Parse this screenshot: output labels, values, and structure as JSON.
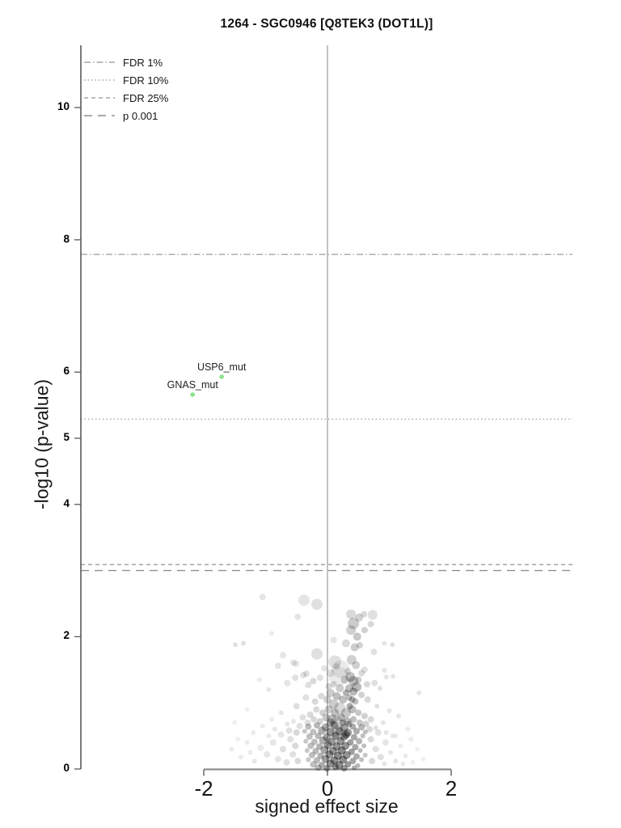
{
  "header": {
    "title": "1264 - SGC0946 [Q8TEK3 (DOT1L)]"
  },
  "chart_data": {
    "type": "scatter",
    "title": "1264 - SGC0946 [Q8TEK3 (DOT1L)]",
    "xlabel": "signed effect size",
    "ylabel": "-log10 (p-value)",
    "xlim": [
      -4,
      4
    ],
    "ylim": [
      0,
      10.95
    ],
    "x_ticks": [
      -2,
      0,
      2
    ],
    "y_ticks": [
      0,
      2,
      4,
      5,
      6,
      8,
      10
    ],
    "grid": false,
    "legend_position": "top-left",
    "legend": [
      {
        "label": "FDR 1%",
        "style": "dashdot"
      },
      {
        "label": "FDR 10%",
        "style": "dotted"
      },
      {
        "label": "FDR 25%",
        "style": "dashed"
      },
      {
        "label": "p 0.001",
        "style": "longdash"
      }
    ],
    "reference_lines": [
      {
        "label": "FDR 1%",
        "style": "dashdot",
        "y": 7.78,
        "color": "#a6a6a6"
      },
      {
        "label": "FDR 10%",
        "style": "dotted",
        "y": 5.29,
        "color": "#a6a6a6"
      },
      {
        "label": "FDR 25%",
        "style": "dashed",
        "y": 3.09,
        "color": "#a6a6a6"
      },
      {
        "label": "p 0.001",
        "style": "longdash",
        "y": 3.0,
        "color": "#8f8f8f"
      }
    ],
    "vline": {
      "x": 0,
      "color": "#c2c2c2"
    },
    "highlight_color": "#8be28b",
    "point_color": "#000000",
    "labeled_points": [
      {
        "label": "USP6_mut",
        "x": -1.71,
        "y": 5.93
      },
      {
        "label": "GNAS_mut",
        "x": -2.18,
        "y": 5.66
      }
    ],
    "background_points_format": [
      "x",
      "y",
      "radius_px",
      "alpha"
    ],
    "background_points": [
      [
        -1.05,
        2.6,
        4,
        0.1
      ],
      [
        -0.38,
        2.55,
        7,
        0.1
      ],
      [
        -0.17,
        2.49,
        7,
        0.12
      ],
      [
        -0.48,
        2.3,
        4,
        0.1
      ],
      [
        0.38,
        2.34,
        6,
        0.15
      ],
      [
        0.42,
        2.2,
        7,
        0.2
      ],
      [
        0.51,
        2.29,
        5,
        0.18
      ],
      [
        0.59,
        2.34,
        4,
        0.15
      ],
      [
        0.73,
        2.33,
        6,
        0.12
      ],
      [
        0.38,
        2.1,
        6,
        0.18
      ],
      [
        0.48,
        2.0,
        5,
        0.22
      ],
      [
        0.7,
        2.19,
        4,
        0.15
      ],
      [
        0.6,
        2.1,
        4,
        0.18
      ],
      [
        -1.49,
        1.88,
        3,
        0.12
      ],
      [
        -1.36,
        1.9,
        3,
        0.12
      ],
      [
        1.05,
        1.88,
        3,
        0.12
      ],
      [
        0.75,
        1.77,
        4,
        0.12
      ],
      [
        -0.17,
        1.74,
        7,
        0.12
      ],
      [
        -0.72,
        1.72,
        4,
        0.1
      ],
      [
        0.44,
        1.84,
        5,
        0.2
      ],
      [
        0.52,
        1.87,
        4,
        0.18
      ],
      [
        0.92,
        1.9,
        3,
        0.1
      ],
      [
        -0.9,
        2.05,
        3,
        0.08
      ],
      [
        0.1,
        1.95,
        4,
        0.1
      ],
      [
        0.3,
        1.9,
        5,
        0.15
      ],
      [
        0.21,
        1.51,
        11,
        0.08
      ],
      [
        0.12,
        1.62,
        8,
        0.12
      ],
      [
        0.39,
        1.65,
        6,
        0.18
      ],
      [
        0.46,
        1.57,
        5,
        0.18
      ],
      [
        0.18,
        1.4,
        12,
        0.08
      ],
      [
        0.37,
        1.39,
        6,
        0.25
      ],
      [
        0.42,
        1.33,
        6,
        0.25
      ],
      [
        0.47,
        1.24,
        6,
        0.28
      ],
      [
        0.35,
        1.22,
        5,
        0.25
      ],
      [
        0.42,
        1.17,
        5,
        0.28
      ],
      [
        -0.55,
        1.61,
        4,
        0.1
      ],
      [
        -0.51,
        1.59,
        4,
        0.1
      ],
      [
        -0.34,
        1.44,
        4,
        0.12
      ],
      [
        -0.8,
        1.56,
        4,
        0.1
      ],
      [
        -0.52,
        1.38,
        4,
        0.12
      ],
      [
        -0.39,
        1.42,
        4,
        0.12
      ],
      [
        -0.23,
        1.33,
        4,
        0.15
      ],
      [
        -0.31,
        1.27,
        4,
        0.12
      ],
      [
        0.02,
        1.25,
        4,
        0.15
      ],
      [
        0.1,
        1.28,
        4,
        0.15
      ],
      [
        0.92,
        1.49,
        3,
        0.1
      ],
      [
        1.06,
        1.4,
        3,
        0.1
      ],
      [
        0.76,
        1.3,
        4,
        0.12
      ],
      [
        0.64,
        1.28,
        4,
        0.15
      ],
      [
        0.95,
        1.39,
        3,
        0.1
      ],
      [
        1.48,
        1.15,
        3,
        0.1
      ],
      [
        -1.1,
        1.35,
        3,
        0.08
      ],
      [
        -0.95,
        1.2,
        3,
        0.1
      ],
      [
        0.55,
        1.45,
        4,
        0.15
      ],
      [
        0.28,
        1.35,
        5,
        0.18
      ],
      [
        0.05,
        1.45,
        5,
        0.1
      ],
      [
        -0.12,
        1.38,
        4,
        0.12
      ],
      [
        0.2,
        1.22,
        5,
        0.2
      ],
      [
        0.5,
        1.35,
        4,
        0.2
      ],
      [
        0.6,
        1.5,
        4,
        0.12
      ],
      [
        -0.65,
        1.3,
        4,
        0.1
      ],
      [
        0.85,
        1.22,
        3,
        0.12
      ],
      [
        0.15,
        1.55,
        4,
        0.12
      ],
      [
        -0.05,
        1.52,
        4,
        0.1
      ],
      [
        0.33,
        1.48,
        4,
        0.15
      ],
      [
        0.05,
        1.15,
        5,
        0.2
      ],
      [
        0.15,
        1.1,
        5,
        0.25
      ],
      [
        0.25,
        1.05,
        5,
        0.25
      ],
      [
        0.35,
        1.08,
        4,
        0.25
      ],
      [
        0.45,
        1.02,
        4,
        0.25
      ],
      [
        0.1,
        0.98,
        6,
        0.2
      ],
      [
        0.0,
        1.05,
        5,
        0.18
      ],
      [
        -0.1,
        1.1,
        4,
        0.15
      ],
      [
        -0.2,
        1.02,
        4,
        0.15
      ],
      [
        -0.35,
        1.08,
        4,
        0.12
      ],
      [
        -0.5,
        0.95,
        4,
        0.12
      ],
      [
        0.55,
        1.12,
        4,
        0.18
      ],
      [
        0.65,
        1.05,
        4,
        0.15
      ],
      [
        0.8,
        0.95,
        3,
        0.12
      ],
      [
        1.0,
        0.88,
        3,
        0.1
      ],
      [
        1.15,
        0.8,
        3,
        0.1
      ],
      [
        -0.75,
        0.85,
        3,
        0.1
      ],
      [
        -0.9,
        0.75,
        3,
        0.08
      ],
      [
        0.2,
        0.92,
        7,
        0.15
      ],
      [
        0.3,
        0.85,
        6,
        0.22
      ],
      [
        0.4,
        0.9,
        5,
        0.25
      ],
      [
        0.12,
        0.85,
        5,
        0.25
      ],
      [
        0.02,
        0.9,
        5,
        0.2
      ],
      [
        -0.08,
        0.85,
        4,
        0.18
      ],
      [
        -0.18,
        0.9,
        4,
        0.15
      ],
      [
        -0.28,
        0.82,
        4,
        0.15
      ],
      [
        0.5,
        0.85,
        4,
        0.22
      ],
      [
        0.6,
        0.8,
        4,
        0.18
      ],
      [
        0.22,
        0.78,
        5,
        0.28
      ],
      [
        0.32,
        0.72,
        5,
        0.28
      ],
      [
        0.08,
        0.75,
        6,
        0.25
      ],
      [
        -0.02,
        0.78,
        5,
        0.22
      ],
      [
        -0.12,
        0.72,
        4,
        0.18
      ],
      [
        -0.4,
        0.78,
        4,
        0.12
      ],
      [
        -0.55,
        0.72,
        3,
        0.1
      ],
      [
        0.7,
        0.75,
        4,
        0.15
      ],
      [
        0.9,
        0.7,
        3,
        0.1
      ],
      [
        0.42,
        0.75,
        4,
        0.25
      ],
      [
        0.52,
        0.7,
        4,
        0.22
      ],
      [
        0.15,
        0.7,
        8,
        0.12
      ],
      [
        0.05,
        0.7,
        5,
        0.25
      ],
      [
        -0.22,
        0.75,
        4,
        0.15
      ],
      [
        -0.32,
        0.7,
        4,
        0.12
      ],
      [
        1.3,
        0.6,
        3,
        0.08
      ],
      [
        -1.2,
        0.55,
        3,
        0.08
      ],
      [
        -1.05,
        0.65,
        3,
        0.08
      ],
      [
        0.25,
        0.7,
        4,
        0.3
      ],
      [
        0.35,
        0.68,
        4,
        0.3
      ],
      [
        -0.65,
        0.68,
        3,
        0.1
      ],
      [
        0.62,
        0.68,
        4,
        0.18
      ],
      [
        0.78,
        0.62,
        3,
        0.12
      ],
      [
        -0.85,
        0.6,
        3,
        0.1
      ],
      [
        0.95,
        0.55,
        3,
        0.1
      ],
      [
        1.1,
        0.5,
        3,
        0.08
      ],
      [
        -0.45,
        0.65,
        4,
        0.12
      ],
      [
        0.1,
        0.62,
        11,
        0.08
      ],
      [
        0.18,
        0.55,
        9,
        0.1
      ],
      [
        -1.3,
        0.9,
        3,
        0.06
      ],
      [
        -1.5,
        0.7,
        3,
        0.06
      ],
      [
        0.3,
        1.15,
        4,
        0.3
      ],
      [
        0.4,
        1.05,
        4,
        0.3
      ],
      [
        0.36,
        0.95,
        4,
        0.32
      ],
      [
        0.3,
        0.52,
        5,
        0.4
      ],
      [
        -0.31,
        0.64,
        4,
        0.25
      ],
      [
        -0.17,
        0.66,
        4,
        0.28
      ],
      [
        -0.03,
        0.63,
        5,
        0.3
      ],
      [
        0.11,
        0.66,
        5,
        0.32
      ],
      [
        0.27,
        0.62,
        5,
        0.35
      ],
      [
        0.41,
        0.64,
        4,
        0.32
      ],
      [
        0.55,
        0.63,
        4,
        0.28
      ],
      [
        -0.37,
        0.57,
        3,
        0.22
      ],
      [
        -0.23,
        0.56,
        4,
        0.25
      ],
      [
        -0.09,
        0.58,
        5,
        0.3
      ],
      [
        0.05,
        0.56,
        5,
        0.35
      ],
      [
        0.19,
        0.57,
        5,
        0.38
      ],
      [
        0.33,
        0.55,
        5,
        0.38
      ],
      [
        0.47,
        0.57,
        4,
        0.32
      ],
      [
        0.61,
        0.56,
        3,
        0.25
      ],
      [
        -0.29,
        0.49,
        4,
        0.25
      ],
      [
        -0.15,
        0.5,
        4,
        0.28
      ],
      [
        -0.01,
        0.48,
        5,
        0.35
      ],
      [
        0.13,
        0.5,
        5,
        0.4
      ],
      [
        0.27,
        0.49,
        5,
        0.4
      ],
      [
        0.43,
        0.48,
        4,
        0.35
      ],
      [
        0.57,
        0.5,
        3,
        0.25
      ],
      [
        -0.35,
        0.42,
        3,
        0.22
      ],
      [
        -0.21,
        0.41,
        4,
        0.25
      ],
      [
        -0.07,
        0.43,
        5,
        0.32
      ],
      [
        0.07,
        0.41,
        5,
        0.4
      ],
      [
        0.21,
        0.42,
        5,
        0.42
      ],
      [
        0.37,
        0.4,
        4,
        0.38
      ],
      [
        0.51,
        0.42,
        4,
        0.3
      ],
      [
        -0.27,
        0.35,
        4,
        0.25
      ],
      [
        -0.13,
        0.34,
        4,
        0.3
      ],
      [
        0.01,
        0.36,
        5,
        0.38
      ],
      [
        0.15,
        0.34,
        5,
        0.42
      ],
      [
        0.29,
        0.35,
        5,
        0.42
      ],
      [
        0.45,
        0.33,
        4,
        0.35
      ],
      [
        0.59,
        0.35,
        3,
        0.25
      ],
      [
        -0.33,
        0.28,
        3,
        0.22
      ],
      [
        -0.19,
        0.27,
        4,
        0.28
      ],
      [
        -0.05,
        0.29,
        5,
        0.35
      ],
      [
        0.09,
        0.27,
        5,
        0.42
      ],
      [
        0.23,
        0.28,
        5,
        0.45
      ],
      [
        0.39,
        0.26,
        4,
        0.38
      ],
      [
        0.53,
        0.28,
        3,
        0.28
      ],
      [
        -0.25,
        0.21,
        4,
        0.25
      ],
      [
        -0.11,
        0.2,
        4,
        0.3
      ],
      [
        0.03,
        0.22,
        5,
        0.4
      ],
      [
        0.17,
        0.2,
        5,
        0.45
      ],
      [
        0.31,
        0.21,
        5,
        0.42
      ],
      [
        0.47,
        0.19,
        4,
        0.32
      ],
      [
        0.61,
        0.21,
        3,
        0.22
      ],
      [
        -0.31,
        0.14,
        3,
        0.22
      ],
      [
        -0.17,
        0.13,
        4,
        0.28
      ],
      [
        -0.03,
        0.15,
        5,
        0.38
      ],
      [
        0.11,
        0.13,
        5,
        0.45
      ],
      [
        0.25,
        0.14,
        5,
        0.45
      ],
      [
        0.41,
        0.12,
        4,
        0.35
      ],
      [
        0.55,
        0.14,
        3,
        0.25
      ],
      [
        -0.23,
        0.07,
        4,
        0.25
      ],
      [
        -0.09,
        0.06,
        4,
        0.32
      ],
      [
        0.05,
        0.08,
        5,
        0.42
      ],
      [
        0.19,
        0.06,
        5,
        0.45
      ],
      [
        0.33,
        0.07,
        4,
        0.4
      ],
      [
        0.49,
        0.05,
        3,
        0.28
      ],
      [
        -0.15,
        0.02,
        4,
        0.28
      ],
      [
        -0.01,
        0.01,
        4,
        0.38
      ],
      [
        0.13,
        0.03,
        4,
        0.42
      ],
      [
        0.27,
        0.01,
        4,
        0.38
      ],
      [
        0.43,
        0.02,
        3,
        0.3
      ],
      [
        -1.55,
        0.3,
        3,
        0.08
      ],
      [
        -1.4,
        0.18,
        3,
        0.08
      ],
      [
        -1.3,
        0.4,
        3,
        0.08
      ],
      [
        -1.18,
        0.12,
        3,
        0.1
      ],
      [
        -1.08,
        0.32,
        4,
        0.08
      ],
      [
        -0.98,
        0.22,
        4,
        0.1
      ],
      [
        -0.88,
        0.4,
        4,
        0.1
      ],
      [
        -0.8,
        0.15,
        4,
        0.1
      ],
      [
        -0.72,
        0.3,
        4,
        0.12
      ],
      [
        -0.66,
        0.1,
        4,
        0.12
      ],
      [
        -0.6,
        0.45,
        4,
        0.12
      ],
      [
        -0.56,
        0.22,
        4,
        0.12
      ],
      [
        -0.52,
        0.35,
        4,
        0.15
      ],
      [
        -0.48,
        0.12,
        4,
        0.15
      ],
      [
        -0.75,
        0.52,
        4,
        0.1
      ],
      [
        -0.95,
        0.5,
        3,
        0.08
      ],
      [
        -1.25,
        0.25,
        3,
        0.08
      ],
      [
        -0.62,
        0.58,
        4,
        0.12
      ],
      [
        -0.5,
        0.55,
        4,
        0.15
      ],
      [
        -1.45,
        0.45,
        3,
        0.06
      ],
      [
        0.7,
        0.45,
        4,
        0.15
      ],
      [
        0.78,
        0.3,
        4,
        0.12
      ],
      [
        0.86,
        0.18,
        4,
        0.12
      ],
      [
        0.94,
        0.4,
        4,
        0.1
      ],
      [
        1.02,
        0.25,
        3,
        0.1
      ],
      [
        1.1,
        0.12,
        3,
        0.1
      ],
      [
        1.18,
        0.35,
        3,
        0.08
      ],
      [
        1.26,
        0.2,
        3,
        0.08
      ],
      [
        1.35,
        0.45,
        3,
        0.08
      ],
      [
        1.45,
        0.3,
        3,
        0.06
      ],
      [
        1.55,
        0.15,
        3,
        0.06
      ],
      [
        0.72,
        0.12,
        4,
        0.15
      ],
      [
        0.82,
        0.55,
        4,
        0.12
      ],
      [
        0.92,
        0.08,
        3,
        0.1
      ],
      [
        1.05,
        0.5,
        3,
        0.08
      ],
      [
        1.22,
        0.08,
        3,
        0.08
      ],
      [
        0.68,
        0.6,
        4,
        0.15
      ],
      [
        1.38,
        0.1,
        3,
        0.06
      ]
    ]
  }
}
